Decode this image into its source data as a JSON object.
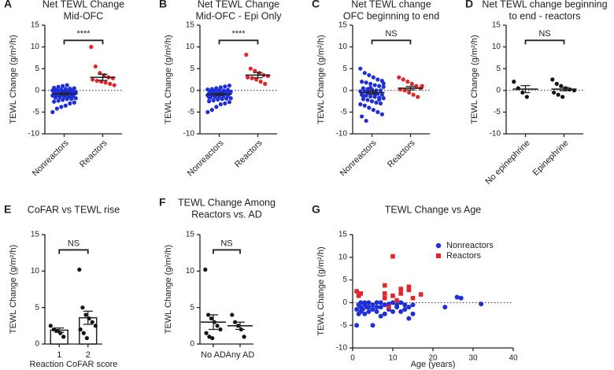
{
  "chart_data": [
    {
      "type": "dot",
      "letter": "A",
      "title": [
        "Net TEWL Change",
        "Mid-OFC"
      ],
      "ylabel": "TEWL Change (g/m²/h)",
      "ylim": [
        -10,
        15
      ],
      "yticks": [
        -10,
        -5,
        0,
        5,
        10,
        15
      ],
      "zero_line": true,
      "annotation": "****",
      "rotate_labels": true,
      "groups": [
        {
          "name": "Nonreactors",
          "color": "#1f2fd6",
          "mean": -0.8,
          "error": 0.2,
          "values": [
            -5,
            -4.2,
            -3.8,
            -3.5,
            -3,
            -2.8,
            -2.6,
            -2.4,
            -2.2,
            -2,
            -2,
            -1.8,
            -1.7,
            -1.6,
            -1.5,
            -1.4,
            -1.3,
            -1.2,
            -1.1,
            -1,
            -1,
            -0.9,
            -0.8,
            -0.8,
            -0.7,
            -0.6,
            -0.5,
            -0.5,
            -0.4,
            -0.3,
            -0.2,
            -0.2,
            -0.1,
            0,
            0,
            0.1,
            0.2,
            0.3,
            0.4,
            0.5,
            0.6,
            0.8,
            1,
            1.2,
            -1.5,
            -0.6
          ]
        },
        {
          "name": "Reactors",
          "color": "#e0262a",
          "mean": 3.0,
          "error": 0.7,
          "values": [
            10,
            5.5,
            4,
            3.5,
            3,
            2.8,
            2.5,
            2.2,
            2,
            1.8,
            1.5,
            1.2
          ]
        }
      ]
    },
    {
      "type": "dot",
      "letter": "B",
      "title": [
        "Net TEWL Change",
        "Mid-OFC - Epi Only"
      ],
      "ylabel": "TEWL Change (g/m²/h)",
      "ylim": [
        -10,
        15
      ],
      "yticks": [
        -10,
        -5,
        0,
        5,
        10,
        15
      ],
      "zero_line": true,
      "annotation": "****",
      "rotate_labels": true,
      "groups": [
        {
          "name": "Nonreactors",
          "color": "#1f2fd6",
          "mean": -0.9,
          "error": 0.2,
          "values": [
            -5,
            -4.5,
            -3.8,
            -3.2,
            -3,
            -2.7,
            -2.5,
            -2.3,
            -2.1,
            -2,
            -1.9,
            -1.8,
            -1.6,
            -1.5,
            -1.4,
            -1.3,
            -1.2,
            -1.1,
            -1,
            -1,
            -0.9,
            -0.8,
            -0.7,
            -0.7,
            -0.6,
            -0.5,
            -0.4,
            -0.3,
            -0.3,
            -0.2,
            -0.1,
            0,
            0,
            0.1,
            0.2,
            0.3,
            0.5,
            0.7,
            0.9,
            1.1,
            -1.6,
            -0.6
          ]
        },
        {
          "name": "Reactors",
          "color": "#e0262a",
          "mean": 3.5,
          "error": 0.6,
          "values": [
            8.2,
            5,
            4.5,
            4,
            3.5,
            3.3,
            3,
            2.8,
            2.5,
            2,
            1.5
          ]
        }
      ]
    },
    {
      "type": "dot",
      "letter": "C",
      "title": [
        "Net TEWL change",
        "OFC beginning to end"
      ],
      "ylabel": "TEWL Change (g/m²/h)",
      "ylim": [
        -10,
        15
      ],
      "yticks": [
        -10,
        -5,
        0,
        5,
        10,
        15
      ],
      "zero_line": true,
      "annotation": "NS",
      "rotate_labels": true,
      "groups": [
        {
          "name": "Nonreactors",
          "color": "#1f2fd6",
          "mean": -0.5,
          "error": 0.4,
          "values": [
            5,
            4,
            3.5,
            3,
            2.5,
            2.2,
            2,
            1.8,
            1.5,
            1.2,
            1,
            0.8,
            0.5,
            0.3,
            0.2,
            0,
            0,
            -0.2,
            -0.3,
            -0.5,
            -0.6,
            -0.8,
            -1,
            -1,
            -1.2,
            -1.4,
            -1.5,
            -1.7,
            -1.8,
            -2,
            -2.2,
            -2.5,
            -2.8,
            -3,
            -3.2,
            -3.5,
            -4,
            -4.5,
            -5,
            -5.5,
            -6,
            -7,
            0.6,
            -0.9,
            -2.1,
            1.6,
            -1.3,
            -0.4
          ]
        },
        {
          "name": "Reactors",
          "color": "#e0262a",
          "mean": 0.5,
          "error": 0.4,
          "values": [
            3,
            2.5,
            2,
            1.5,
            1,
            0.5,
            0.2,
            0,
            -0.5,
            -1,
            -1.5,
            1
          ]
        }
      ]
    },
    {
      "type": "dot",
      "letter": "D",
      "title": [
        "Net TEWL change beginning",
        "to end - reactors"
      ],
      "ylabel": "TEWL Change (g/m²/h)",
      "ylim": [
        -10,
        15
      ],
      "yticks": [
        -10,
        -5,
        0,
        5,
        10,
        15
      ],
      "zero_line": true,
      "annotation": "NS",
      "rotate_labels": true,
      "groups": [
        {
          "name": "No epinephrine",
          "color": "#111111",
          "mean": 0.3,
          "error": 0.8,
          "values": [
            2,
            0.5,
            -0.5,
            -1.5
          ]
        },
        {
          "name": "Epinephrine",
          "color": "#111111",
          "mean": 0.3,
          "error": 0.4,
          "values": [
            2.5,
            1.5,
            1,
            0.5,
            0.2,
            0,
            -0.5,
            -1,
            -1.5
          ]
        }
      ]
    },
    {
      "type": "bar",
      "letter": "E",
      "title": [
        "CoFAR vs TEWL rise"
      ],
      "ylabel": "TEWL Change (g/m²/h)",
      "xlabel": "Reaction CoFAR score",
      "ylim": [
        0,
        15
      ],
      "yticks": [
        0,
        5,
        10,
        15
      ],
      "zero_line": false,
      "annotation": "NS",
      "rotate_labels": false,
      "groups": [
        {
          "name": "1",
          "color": "#111111",
          "mean": 1.9,
          "error": 0.3,
          "values": [
            2.5,
            2,
            1.8,
            1.5,
            1
          ]
        },
        {
          "name": "2",
          "color": "#111111",
          "mean": 3.6,
          "error": 0.9,
          "values": [
            10.2,
            5,
            4,
            3.5,
            3,
            2.5,
            2,
            1.5,
            0.8
          ]
        }
      ]
    },
    {
      "type": "dot",
      "letter": "F",
      "title": [
        "TEWL Change Among",
        "Reactors vs. AD"
      ],
      "ylabel": "TEWL Change (g/m²/h)",
      "ylim": [
        0,
        15
      ],
      "yticks": [
        0,
        5,
        10,
        15
      ],
      "zero_line": false,
      "annotation": "NS",
      "rotate_labels": false,
      "groups": [
        {
          "name": "No AD",
          "color": "#111111",
          "mean": 3.0,
          "error": 1.0,
          "values": [
            10.2,
            4,
            3.5,
            3,
            2.5,
            2,
            1.5,
            1,
            0.8
          ]
        },
        {
          "name": "Any AD",
          "color": "#111111",
          "mean": 2.5,
          "error": 0.5,
          "values": [
            4,
            3,
            2.5,
            2,
            1
          ]
        }
      ]
    },
    {
      "type": "scatter",
      "letter": "G",
      "title": [
        "TEWL Change vs Age"
      ],
      "ylabel": "TEWL Change (g/m²/h)",
      "xlabel": "Age (years)",
      "xlim": [
        0,
        40
      ],
      "xticks": [
        0,
        10,
        20,
        30,
        40
      ],
      "ylim": [
        -10,
        15
      ],
      "yticks": [
        -10,
        -5,
        0,
        5,
        10,
        15
      ],
      "zero_line": true,
      "legend": "upper right",
      "series": [
        {
          "name": "Nonreactors",
          "color": "#1f2fd6",
          "marker": "circle",
          "x": [
            1,
            1,
            1.5,
            1.5,
            2,
            2,
            2,
            2.5,
            3,
            3,
            3,
            3.5,
            4,
            4,
            4,
            5,
            5,
            5,
            6,
            6,
            6,
            7,
            7,
            7,
            8,
            8,
            9,
            9,
            10,
            10,
            11,
            11,
            12,
            12,
            13,
            13,
            14,
            14,
            15,
            15,
            23,
            26,
            27,
            32
          ],
          "y": [
            -5,
            -1.5,
            -2.5,
            -0.5,
            -2,
            0,
            -1,
            -1.5,
            -2.5,
            -0.5,
            0,
            -1,
            -2,
            -1,
            0,
            -5,
            -1.5,
            -0.5,
            -2,
            -1,
            0,
            -3,
            -1,
            0,
            -2.5,
            -0.5,
            -1.5,
            -0.3,
            -2,
            0,
            -1,
            -0.5,
            -2,
            0,
            -1.5,
            -0.5,
            -3.5,
            -1,
            -2.5,
            -0.5,
            -1,
            1.2,
            1,
            -0.3
          ]
        },
        {
          "name": "Reactors",
          "color": "#e0262a",
          "marker": "square",
          "x": [
            1,
            1.5,
            2,
            8,
            8,
            8,
            9,
            10,
            10,
            12,
            12,
            14,
            14,
            15,
            17,
            11
          ],
          "y": [
            2.5,
            1.5,
            2,
            3.8,
            2,
            1,
            -1,
            10.2,
            1.5,
            3,
            2,
            3.5,
            2.8,
            1,
            1.8,
            0.5
          ]
        }
      ]
    }
  ]
}
